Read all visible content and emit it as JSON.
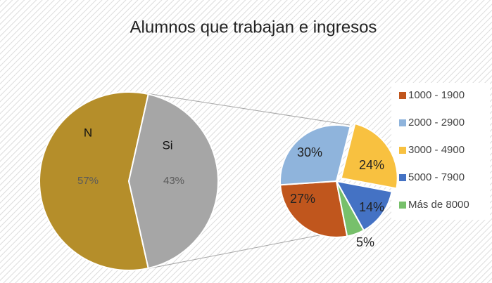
{
  "chart_data": [
    {
      "type": "pie",
      "title": "Alumnos que trabajan e ingresos",
      "categories": [
        "N",
        "Si"
      ],
      "values": [
        57,
        43
      ],
      "value_labels": [
        "57%",
        "43%"
      ],
      "colors": [
        "#b58e2a",
        "#a6a6a6"
      ]
    },
    {
      "type": "pie",
      "categories": [
        "1000 - 1900",
        "2000 - 2900",
        "3000 - 4900",
        "5000 - 7900",
        "Más de 8000"
      ],
      "values": [
        27,
        30,
        24,
        14,
        5
      ],
      "value_labels": [
        "27%",
        "30%",
        "24%",
        "14%",
        "5%"
      ],
      "colors": [
        "#c0561d",
        "#8fb4dc",
        "#f8c140",
        "#4472c4",
        "#77c06b"
      ],
      "legend": "right"
    }
  ]
}
